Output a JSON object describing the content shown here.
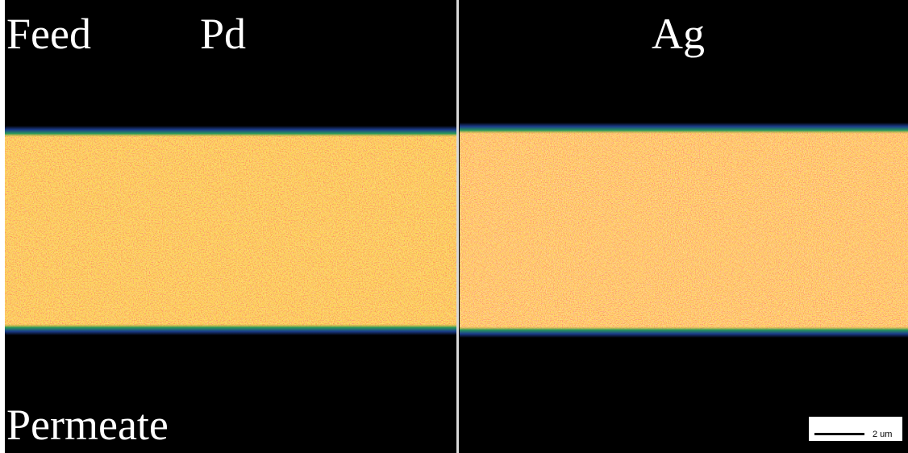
{
  "panels": [
    {
      "element": "Pd",
      "top_label": "Feed",
      "bottom_label": "Permeate"
    },
    {
      "element": "Ag"
    }
  ],
  "scale_bar": {
    "label": "2 um"
  }
}
